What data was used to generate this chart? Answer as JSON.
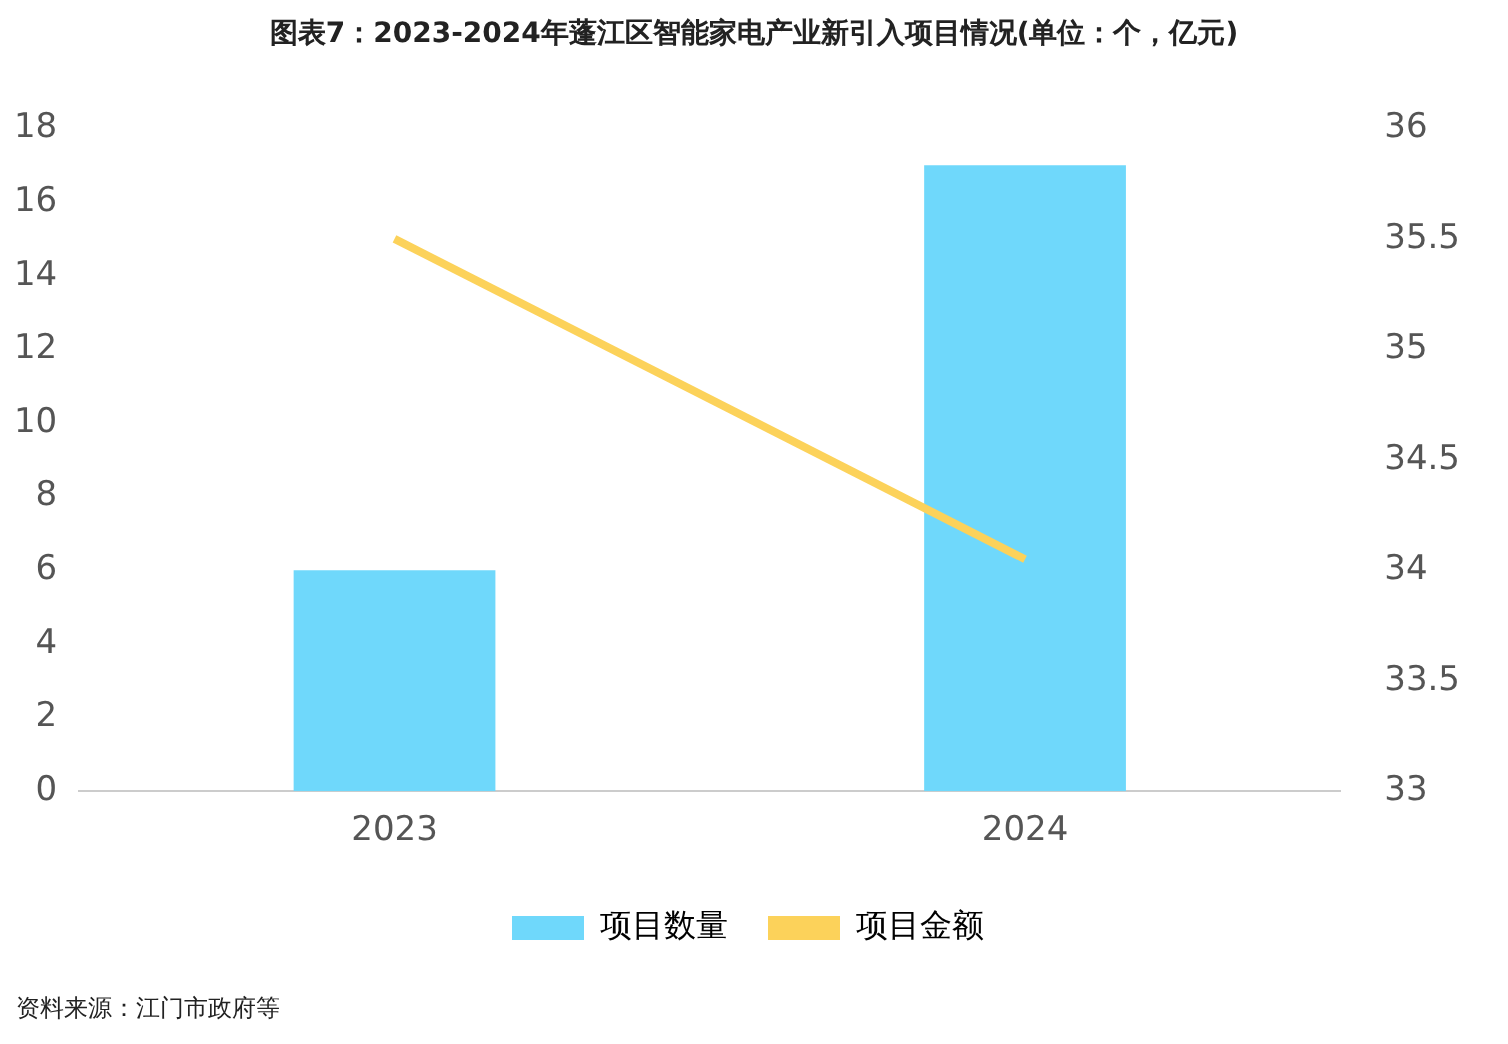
{
  "chart_data": {
    "type": "bar",
    "title": "图表7：2023-2024年蓬江区智能家电产业新引入项目情况(单位：个，亿元)",
    "categories": [
      "2023",
      "2024"
    ],
    "series": [
      {
        "name": "项目数量",
        "color": "#6fd8fb",
        "values": [
          6,
          17
        ]
      },
      {
        "name": "项目金额",
        "type": "line",
        "axis": "y2",
        "color": "#fcd25a",
        "values": [
          35.5,
          34.05
        ]
      }
    ],
    "ylim": [
      0,
      18
    ],
    "yticks": [
      0,
      2,
      4,
      6,
      8,
      10,
      12,
      14,
      16,
      18
    ],
    "y2lim": [
      33,
      36
    ],
    "y2ticks": [
      33,
      33.5,
      34,
      34.5,
      35,
      35.5,
      36
    ],
    "grid": false,
    "legend": "bottom",
    "marker": "none",
    "annotations": [
      "资料来源：江门市政府等"
    ]
  }
}
